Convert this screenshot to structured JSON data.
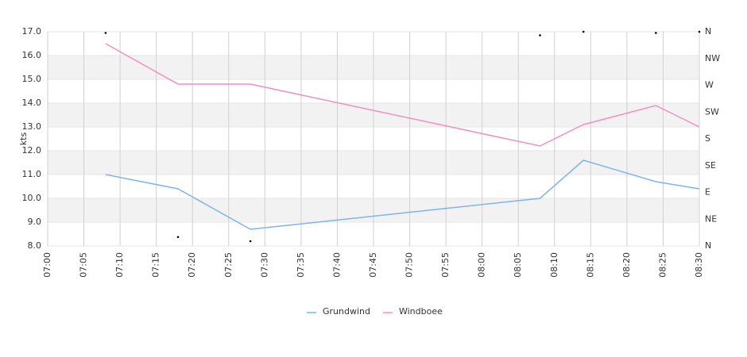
{
  "chart_data": {
    "type": "line",
    "y_label": "kts",
    "x": [
      "07:08",
      "07:18",
      "07:28",
      "08:08",
      "08:14",
      "08:24",
      "08:30"
    ],
    "xlim": [
      "07:00",
      "08:30"
    ],
    "xticks": [
      "07:00",
      "07:05",
      "07:10",
      "07:15",
      "07:20",
      "07:25",
      "07:30",
      "07:35",
      "07:40",
      "07:45",
      "07:50",
      "07:55",
      "08:00",
      "08:05",
      "08:10",
      "08:15",
      "08:20",
      "08:25",
      "08:30"
    ],
    "ylim": [
      8,
      17
    ],
    "yticks": [
      {
        "value": 8,
        "label": "8.0"
      },
      {
        "value": 9,
        "label": "9.0"
      },
      {
        "value": 10,
        "label": "10.0"
      },
      {
        "value": 11,
        "label": "11.0"
      },
      {
        "value": 12,
        "label": "12.0"
      },
      {
        "value": 13,
        "label": "13.0"
      },
      {
        "value": 14,
        "label": "14.0"
      },
      {
        "value": 15,
        "label": "15.0"
      },
      {
        "value": 16,
        "label": "16.0"
      },
      {
        "value": 17,
        "label": "17.0"
      }
    ],
    "y2lim": [
      0,
      360
    ],
    "y2ticks": [
      {
        "value": 0,
        "label": "N"
      },
      {
        "value": 45,
        "label": "NE"
      },
      {
        "value": 90,
        "label": "E"
      },
      {
        "value": 135,
        "label": "SE"
      },
      {
        "value": 180,
        "label": "S"
      },
      {
        "value": 225,
        "label": "SW"
      },
      {
        "value": 270,
        "label": "W"
      },
      {
        "value": 315,
        "label": "NW"
      },
      {
        "value": 360,
        "label": "N"
      }
    ],
    "grid": true,
    "legend": "bottom",
    "series": [
      {
        "name": "Grundwind",
        "color": "#7cb5ec",
        "values": [
          11.0,
          10.4,
          8.7,
          10.0,
          11.6,
          10.7,
          10.4
        ]
      },
      {
        "name": "Windboee",
        "color": "#f08fc0",
        "values": [
          16.5,
          14.8,
          14.8,
          12.2,
          13.1,
          13.9,
          13.0
        ]
      },
      {
        "color": "#000000",
        "axis": "y2",
        "style": "dots",
        "values": [
          358,
          15,
          8,
          354,
          360,
          358,
          360
        ]
      }
    ]
  }
}
